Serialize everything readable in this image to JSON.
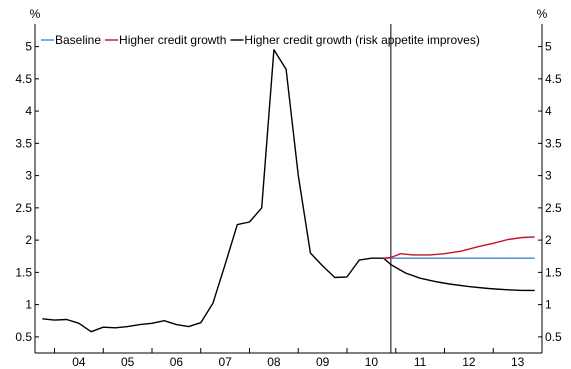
{
  "chart_data": {
    "type": "line",
    "title": "",
    "y_unit_left": "%",
    "y_unit_right": "%",
    "ylim": [
      0.25,
      5.35
    ],
    "yticks": [
      0.5,
      1,
      1.5,
      2,
      2.5,
      3,
      3.5,
      4,
      4.5,
      5
    ],
    "ytick_labels": [
      "0.5",
      "1",
      "1.5",
      "2",
      "2.5",
      "3",
      "3.5",
      "4",
      "4.5",
      "5"
    ],
    "xlim": [
      2003.6,
      2014.0
    ],
    "xtick_labels": [
      "04",
      "05",
      "06",
      "07",
      "08",
      "09",
      "10",
      "11",
      "12",
      "13"
    ],
    "xtick_centers": [
      2004.5,
      2005.5,
      2006.5,
      2007.5,
      2008.5,
      2009.5,
      2010.5,
      2011.5,
      2012.5,
      2013.5
    ],
    "xtick_boundaries": [
      2004,
      2005,
      2006,
      2007,
      2008,
      2009,
      2010,
      2011,
      2012,
      2013
    ],
    "forecast_start": 2010.9,
    "legend_position": "top",
    "series": [
      {
        "name": "Baseline",
        "color": "#4a86c8",
        "points": [
          [
            2010.75,
            1.72
          ],
          [
            2010.9,
            1.72
          ],
          [
            2011.2,
            1.72
          ],
          [
            2012.0,
            1.72
          ],
          [
            2013.0,
            1.72
          ],
          [
            2013.85,
            1.72
          ]
        ]
      },
      {
        "name": "Higher credit growth",
        "color": "#c8102e",
        "points": [
          [
            2010.75,
            1.72
          ],
          [
            2010.9,
            1.73
          ],
          [
            2011.1,
            1.79
          ],
          [
            2011.35,
            1.77
          ],
          [
            2011.7,
            1.77
          ],
          [
            2012.0,
            1.79
          ],
          [
            2012.35,
            1.83
          ],
          [
            2012.7,
            1.9
          ],
          [
            2013.0,
            1.95
          ],
          [
            2013.3,
            2.01
          ],
          [
            2013.6,
            2.04
          ],
          [
            2013.85,
            2.05
          ]
        ]
      },
      {
        "name": "Higher credit growth (risk appetite improves)",
        "color": "#000000",
        "points": [
          [
            2003.75,
            0.78
          ],
          [
            2004.0,
            0.76
          ],
          [
            2004.25,
            0.77
          ],
          [
            2004.5,
            0.71
          ],
          [
            2004.75,
            0.58
          ],
          [
            2005.0,
            0.65
          ],
          [
            2005.25,
            0.64
          ],
          [
            2005.5,
            0.66
          ],
          [
            2005.75,
            0.69
          ],
          [
            2006.0,
            0.71
          ],
          [
            2006.25,
            0.75
          ],
          [
            2006.5,
            0.69
          ],
          [
            2006.75,
            0.66
          ],
          [
            2007.0,
            0.72
          ],
          [
            2007.25,
            1.02
          ],
          [
            2007.5,
            1.62
          ],
          [
            2007.75,
            2.24
          ],
          [
            2008.0,
            2.28
          ],
          [
            2008.25,
            2.5
          ],
          [
            2008.5,
            4.95
          ],
          [
            2008.75,
            4.65
          ],
          [
            2009.0,
            3.0
          ],
          [
            2009.25,
            1.8
          ],
          [
            2009.5,
            1.6
          ],
          [
            2009.75,
            1.42
          ],
          [
            2010.0,
            1.43
          ],
          [
            2010.25,
            1.69
          ],
          [
            2010.5,
            1.72
          ],
          [
            2010.75,
            1.72
          ],
          [
            2010.9,
            1.62
          ],
          [
            2011.2,
            1.49
          ],
          [
            2011.5,
            1.41
          ],
          [
            2011.8,
            1.36
          ],
          [
            2012.1,
            1.32
          ],
          [
            2012.5,
            1.28
          ],
          [
            2012.9,
            1.25
          ],
          [
            2013.3,
            1.23
          ],
          [
            2013.6,
            1.22
          ],
          [
            2013.85,
            1.22
          ]
        ]
      }
    ]
  }
}
